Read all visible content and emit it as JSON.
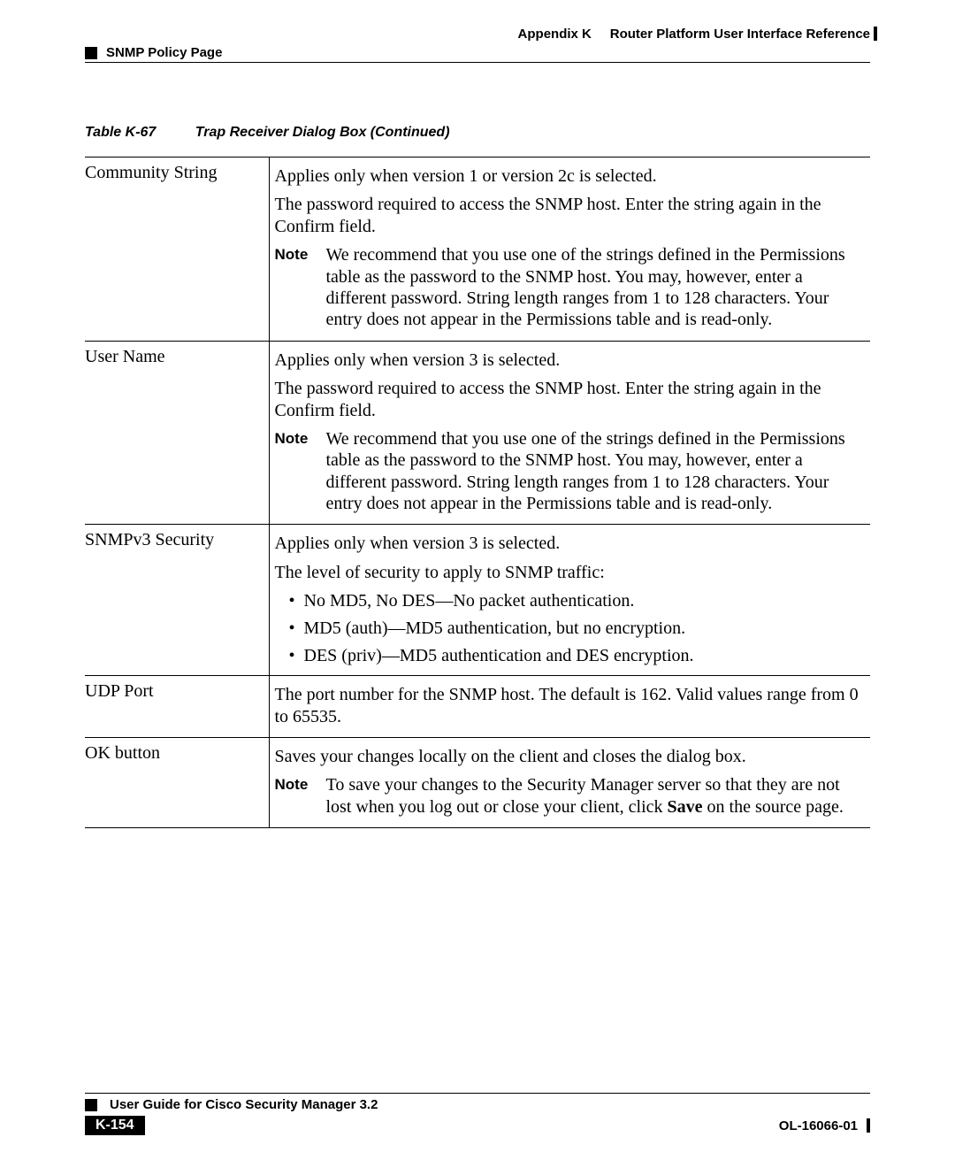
{
  "header": {
    "appendix_label": "Appendix K",
    "appendix_title": "Router Platform User Interface Reference",
    "section": "SNMP Policy Page"
  },
  "table": {
    "caption_number": "Table K-67",
    "caption_title": "Trap Receiver Dialog Box (Continued)",
    "rows": [
      {
        "label": "Community String",
        "p1": "Applies only when version 1 or version 2c is selected.",
        "p2": "The password required to access the SNMP host. Enter the string again in the Confirm field.",
        "note_label": "Note",
        "note": "We recommend that you use one of the strings defined in the Permissions table as the password to the SNMP host. You may, however, enter a different password. String length ranges from 1 to 128 characters. Your entry does not appear in the Permissions table and is read-only."
      },
      {
        "label": "User Name",
        "p1": "Applies only when version 3 is selected.",
        "p2": "The password required to access the SNMP host. Enter the string again in the Confirm field.",
        "note_label": "Note",
        "note": "We recommend that you use one of the strings defined in the Permissions table as the password to the SNMP host. You may, however, enter a different password. String length ranges from 1 to 128 characters. Your entry does not appear in the Permissions table and is read-only."
      },
      {
        "label": "SNMPv3 Security",
        "p1": "Applies only when version 3 is selected.",
        "p2": "The level of security to apply to SNMP traffic:",
        "bullets": [
          "No MD5, No DES—No packet authentication.",
          "MD5 (auth)—MD5 authentication, but no encryption.",
          "DES (priv)—MD5 authentication and DES encryption."
        ]
      },
      {
        "label": "UDP Port",
        "p1": "The port number for the SNMP host. The default is 162. Valid values range from 0 to 65535."
      },
      {
        "label": "OK button",
        "p1": "Saves your changes locally on the client and closes the dialog box.",
        "note_label": "Note",
        "note_pre": "To save your changes to the Security Manager server so that they are not lost when you log out or close your client, click ",
        "note_bold": "Save",
        "note_post": " on the source page."
      }
    ]
  },
  "footer": {
    "guide_title": "User Guide for Cisco Security Manager 3.2",
    "page": "K-154",
    "doc_id": "OL-16066-01"
  }
}
